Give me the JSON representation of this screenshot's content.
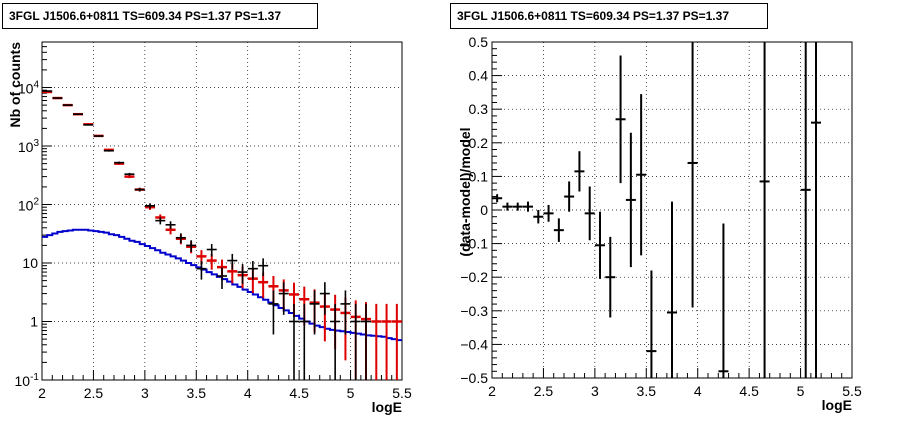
{
  "chart_data": [
    {
      "type": "line",
      "title": "3FGL J1506.6+0811 TS=609.34 PS=1.37 PS=1.37",
      "xlabel": "logE",
      "ylabel": "Nb of counts",
      "xlim": [
        2,
        5.5
      ],
      "ylim": [
        0.1,
        60000
      ],
      "yscale": "log",
      "grid": true,
      "xticks": [
        "2",
        "2.5",
        "3",
        "3.5",
        "4",
        "4.5",
        "5",
        "5.5"
      ],
      "yticks": [
        "10^{-1}",
        "1",
        "10",
        "10^2",
        "10^3",
        "10^4"
      ],
      "colors": {
        "data": "#000000",
        "model": "#dd0000",
        "source": "#0000cc"
      },
      "series": [
        {
          "role": "data",
          "x": [
            2.05,
            2.15,
            2.25,
            2.35,
            2.45,
            2.55,
            2.65,
            2.75,
            2.85,
            2.95,
            3.05,
            3.15,
            3.25,
            3.35,
            3.45,
            3.55,
            3.65,
            3.75,
            3.85,
            3.95,
            4.05,
            4.15,
            4.25,
            4.35,
            4.45,
            4.55,
            4.65,
            4.75,
            4.85,
            4.95,
            5.05,
            5.15
          ],
          "y": [
            8700,
            6600,
            5000,
            3500,
            2300,
            1480,
            830,
            520,
            330,
            180,
            95,
            53,
            45,
            27,
            20,
            8,
            17,
            6,
            11,
            7,
            8,
            9,
            2,
            3,
            1,
            1,
            2,
            3,
            1,
            2,
            1,
            1
          ],
          "err": [
            93,
            81,
            71,
            59,
            48,
            38,
            29,
            23,
            18,
            13,
            10,
            7.3,
            6.7,
            5.2,
            4.5,
            2.8,
            4.1,
            2.4,
            3.3,
            2.6,
            2.8,
            3.0,
            1.4,
            1.7,
            1,
            1,
            1.4,
            1.7,
            1,
            1.4,
            1,
            1
          ]
        },
        {
          "role": "model",
          "x": [
            2.05,
            2.15,
            2.25,
            2.35,
            2.45,
            2.55,
            2.65,
            2.75,
            2.85,
            2.95,
            3.05,
            3.15,
            3.25,
            3.35,
            3.45,
            3.55,
            3.65,
            3.75,
            3.85,
            3.95,
            4.05,
            4.15,
            4.25,
            4.35,
            4.45,
            4.55,
            4.65,
            4.75,
            4.85,
            4.95,
            5.05,
            5.15,
            5.25,
            5.35,
            5.45
          ],
          "y": [
            8400,
            6600,
            5000,
            3500,
            2350,
            1490,
            860,
            500,
            300,
            180,
            90,
            60,
            37,
            26,
            19,
            13,
            11,
            8.5,
            7.2,
            6.2,
            5.4,
            4.7,
            4.0,
            3.4,
            2.9,
            2.4,
            2.1,
            1.8,
            1.6,
            1.4,
            1.2,
            1.1,
            1.0,
            1.0,
            1.0
          ]
        },
        {
          "role": "source",
          "x": [
            2.0,
            2.05,
            2.1,
            2.15,
            2.2,
            2.25,
            2.3,
            2.35,
            2.4,
            2.45,
            2.5,
            2.55,
            2.6,
            2.65,
            2.7,
            2.75,
            2.8,
            2.85,
            2.9,
            2.95,
            3.0,
            3.05,
            3.1,
            3.15,
            3.2,
            3.25,
            3.3,
            3.35,
            3.4,
            3.45,
            3.5,
            3.55,
            3.6,
            3.65,
            3.7,
            3.75,
            3.8,
            3.85,
            3.9,
            3.95,
            4.0,
            4.05,
            4.1,
            4.15,
            4.2,
            4.25,
            4.3,
            4.35,
            4.4,
            4.45,
            4.5,
            4.55,
            4.6,
            4.65,
            4.7,
            4.75,
            4.8,
            4.85,
            4.9,
            4.95,
            5.0,
            5.05,
            5.1,
            5.15,
            5.2,
            5.25,
            5.3,
            5.35,
            5.4,
            5.45
          ],
          "y": [
            28,
            30,
            32,
            34,
            35,
            36,
            37,
            37,
            37,
            36,
            35,
            34,
            33,
            31,
            30,
            28,
            26,
            24,
            23,
            21,
            19.5,
            18,
            16.5,
            15,
            14,
            13,
            12,
            11,
            10,
            9.2,
            8.4,
            7.7,
            7.0,
            6.4,
            5.8,
            5.3,
            4.8,
            4.3,
            3.9,
            3.5,
            3.2,
            2.9,
            2.6,
            2.35,
            2.1,
            1.9,
            1.7,
            1.55,
            1.4,
            1.25,
            1.12,
            1.0,
            0.92,
            0.85,
            0.8,
            0.75,
            0.72,
            0.7,
            0.68,
            0.66,
            0.64,
            0.62,
            0.6,
            0.58,
            0.57,
            0.56,
            0.55,
            0.52,
            0.5,
            0.48
          ]
        }
      ]
    },
    {
      "type": "scatter",
      "title": "3FGL J1506.6+0811 TS=609.34 PS=1.37 PS=1.37",
      "xlabel": "logE",
      "ylabel": "(data-model)/model",
      "xlim": [
        2,
        5.5
      ],
      "ylim": [
        -0.5,
        0.5
      ],
      "grid": true,
      "xticks": [
        "2",
        "2.5",
        "3",
        "3.5",
        "4",
        "4.5",
        "5",
        "5.5"
      ],
      "yticks": [
        "-0.5",
        "-0.4",
        "-0.3",
        "-0.2",
        "-0.1",
        "0",
        "0.1",
        "0.2",
        "0.3",
        "0.4",
        "0.5"
      ],
      "series": [
        {
          "role": "residual",
          "x": [
            2.05,
            2.15,
            2.25,
            2.35,
            2.45,
            2.55,
            2.65,
            2.75,
            2.85,
            2.95,
            3.05,
            3.15,
            3.25,
            3.35,
            3.45,
            3.55,
            3.75,
            3.95,
            4.25,
            4.65,
            5.05,
            5.15
          ],
          "y": [
            0.035,
            0.01,
            0.01,
            0.01,
            -0.02,
            -0.01,
            -0.06,
            0.04,
            0.115,
            -0.01,
            -0.105,
            -0.2,
            0.27,
            0.03,
            0.105,
            -0.42,
            -0.305,
            0.14,
            -0.48,
            0.085,
            0.06,
            0.26
          ],
          "err": [
            0.012,
            0.012,
            0.012,
            0.015,
            0.02,
            0.025,
            0.035,
            0.045,
            0.06,
            0.08,
            0.1,
            0.12,
            0.19,
            0.2,
            0.24,
            0.24,
            0.33,
            0.43,
            0.44,
            1.0,
            1.0,
            1.0
          ]
        }
      ]
    }
  ]
}
